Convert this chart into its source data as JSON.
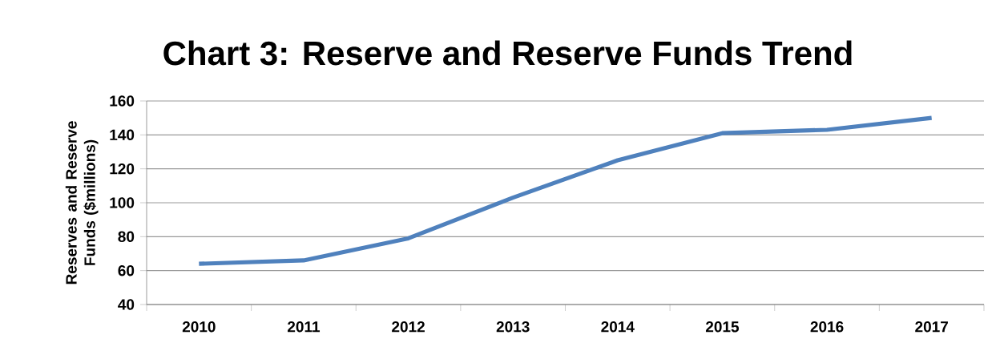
{
  "chart_data": {
    "type": "line",
    "title": "Chart 3: Reserve and Reserve Funds Trend",
    "ylabel": "Reserves and Reserve Funds ($millions)",
    "categories": [
      "2010",
      "2011",
      "2012",
      "2013",
      "2014",
      "2015",
      "2016",
      "2017"
    ],
    "series": [
      {
        "color": "#4f81bd",
        "values": [
          64,
          66,
          79,
          103,
          125,
          141,
          143,
          150
        ]
      }
    ],
    "ylim": [
      40,
      160
    ],
    "yticks": [
      40,
      60,
      80,
      100,
      120,
      140,
      160
    ],
    "grid": "y",
    "marker": "none",
    "line_style": "solid"
  }
}
